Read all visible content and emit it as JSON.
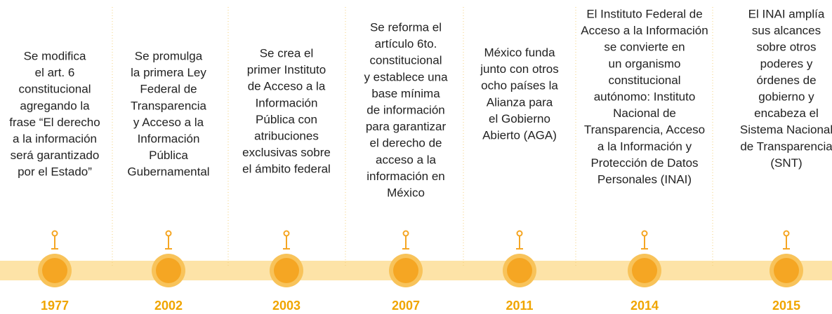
{
  "events": [
    {
      "year": "1977",
      "lines": [
        "Se modifica",
        "el art. 6",
        "constitucional",
        "agregando la",
        "frase “El derecho",
        "a la información",
        "será garantizado",
        "por el Estado”"
      ]
    },
    {
      "year": "2002",
      "lines": [
        "Se promulga",
        "la primera Ley",
        "Federal de",
        "Transparencia",
        "y Acceso a la",
        "Información",
        "Pública",
        "Gubernamental"
      ]
    },
    {
      "year": "2003",
      "lines": [
        "Se crea el",
        "primer Instituto",
        "de Acceso a la",
        "Información",
        "Pública con",
        "atribuciones",
        "exclusivas sobre",
        "el ámbito federal"
      ]
    },
    {
      "year": "2007",
      "lines": [
        "Se reforma el",
        "artículo 6to.",
        "constitucional",
        "y establece una",
        "base mínima",
        "de información",
        "para garantizar",
        "el derecho de",
        "acceso a la",
        "información en",
        "México"
      ]
    },
    {
      "year": "2011",
      "lines": [
        "México funda",
        "junto con otros",
        "ocho países la",
        "Alianza para",
        "el Gobierno",
        "Abierto (AGA)"
      ]
    },
    {
      "year": "2014",
      "lines": [
        "El Instituto Federal de",
        "Acceso a la Información",
        "se convierte en",
        "un organismo",
        "constitucional",
        "autónomo: Instituto",
        "Nacional de",
        "Transparencia, Acceso",
        "a la Información y",
        "Protección de Datos",
        "Personales (INAI)"
      ]
    },
    {
      "year": "2015",
      "lines": [
        "El INAI amplía",
        "sus alcances",
        "sobre otros",
        "poderes y",
        "órdenes de",
        "gobierno y",
        "encabeza el",
        "Sistema Nacional",
        "de Transparencia",
        "(SNT)"
      ]
    }
  ]
}
